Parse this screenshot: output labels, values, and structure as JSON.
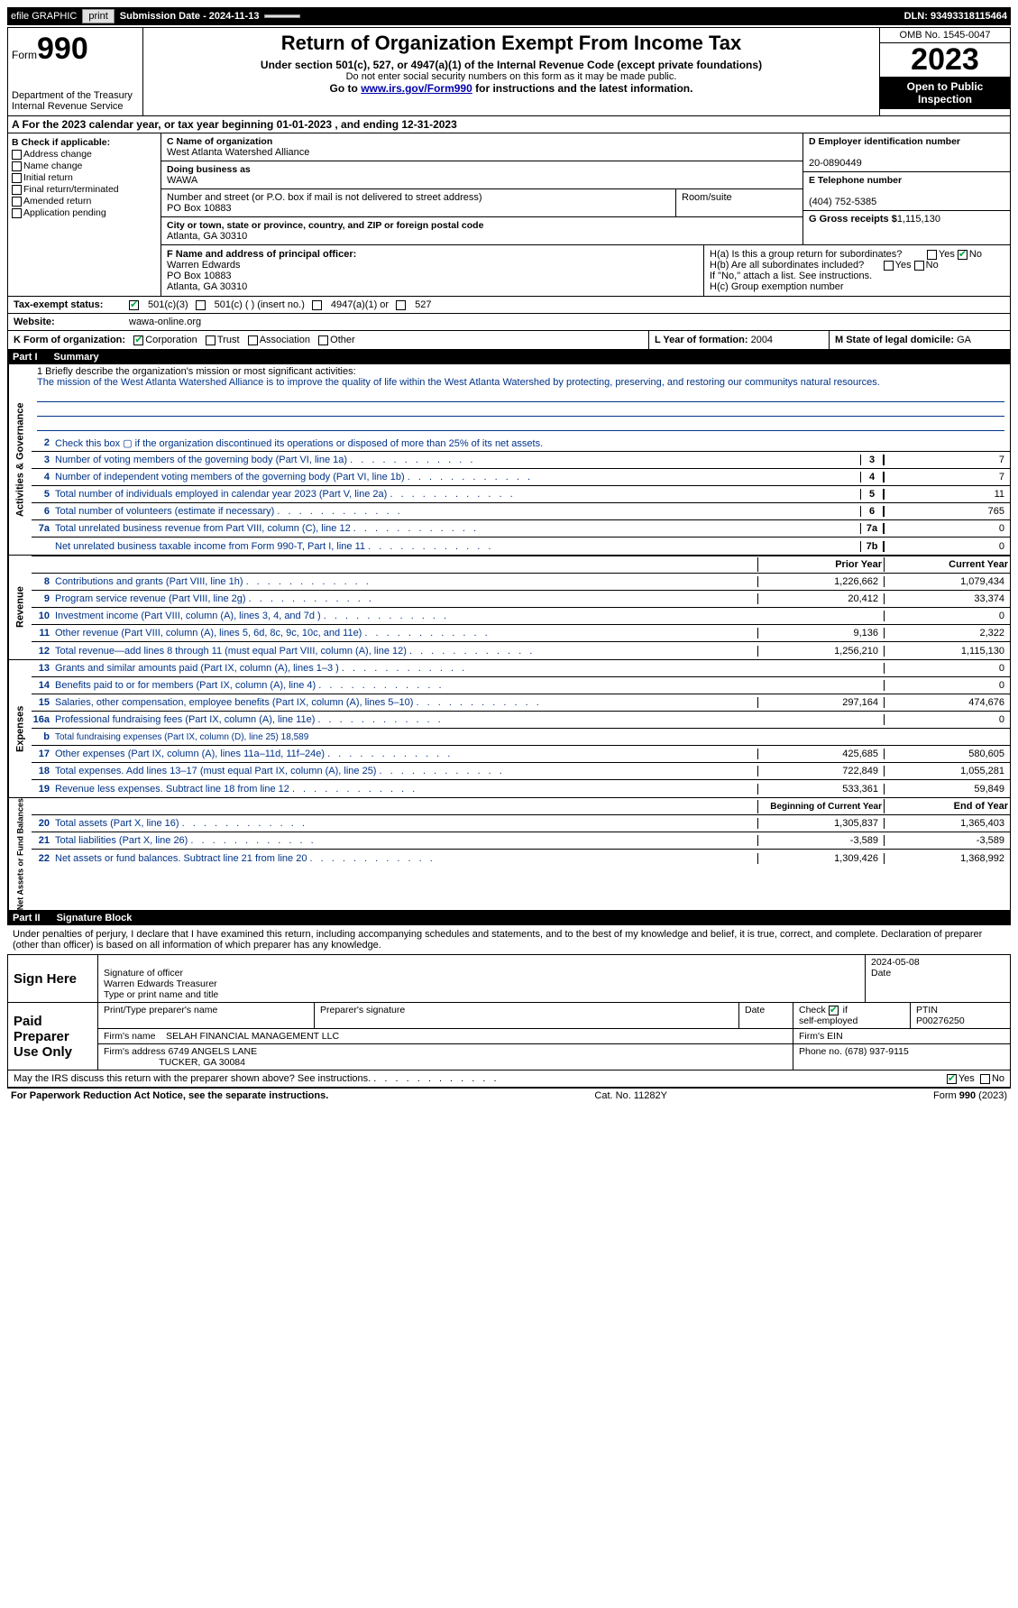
{
  "topbar": {
    "efile": "efile GRAPHIC",
    "print": "print",
    "submission": "Submission Date - 2024-11-13",
    "dln": "DLN: 93493318115464"
  },
  "header": {
    "form_label": "Form",
    "form_no": "990",
    "dept": "Department of the Treasury",
    "irs": "Internal Revenue Service",
    "title": "Return of Organization Exempt From Income Tax",
    "subtitle": "Under section 501(c), 527, or 4947(a)(1) of the Internal Revenue Code (except private foundations)",
    "ssn_note": "Do not enter social security numbers on this form as it may be made public.",
    "goto_pre": "Go to ",
    "goto_link": "www.irs.gov/Form990",
    "goto_post": " for instructions and the latest information.",
    "omb": "OMB No. 1545-0047",
    "year": "2023",
    "open": "Open to Public Inspection"
  },
  "section_a": "A  For the 2023 calendar year, or tax year beginning 01-01-2023   , and ending 12-31-2023",
  "col_b": {
    "hdr": "B Check if applicable:",
    "opts": [
      "Address change",
      "Name change",
      "Initial return",
      "Final return/terminated",
      "Amended return",
      "Application pending"
    ]
  },
  "col_c": {
    "name_lbl": "C Name of organization",
    "name": "West Atlanta Watershed Alliance",
    "dba_lbl": "Doing business as",
    "dba": "WAWA",
    "addr_lbl": "Number and street (or P.O. box if mail is not delivered to street address)",
    "addr": "PO Box 10883",
    "room_lbl": "Room/suite",
    "city_lbl": "City or town, state or province, country, and ZIP or foreign postal code",
    "city": "Atlanta, GA  30310"
  },
  "col_d": {
    "ein_lbl": "D Employer identification number",
    "ein": "20-0890449",
    "tel_lbl": "E Telephone number",
    "tel": "(404) 752-5385",
    "gross_lbl": "G Gross receipts $",
    "gross": "1,115,130"
  },
  "row_f": {
    "lbl": "F Name and address of principal officer:",
    "name": "Warren Edwards",
    "addr1": "PO Box 10883",
    "addr2": "Atlanta, GA  30310"
  },
  "row_h": {
    "ha": "H(a)  Is this a group return for subordinates?",
    "hb": "H(b)  Are all subordinates included?",
    "hb_note": "If \"No,\" attach a list. See instructions.",
    "hc": "H(c)  Group exemption number",
    "yes": "Yes",
    "no": "No"
  },
  "row_i": {
    "lbl": "Tax-exempt status:",
    "o1": "501(c)(3)",
    "o2": "501(c) (  ) (insert no.)",
    "o3": "4947(a)(1) or",
    "o4": "527"
  },
  "row_j": {
    "lbl": "Website:",
    "val": "wawa-online.org"
  },
  "row_k": {
    "lbl": "K Form of organization:",
    "o1": "Corporation",
    "o2": "Trust",
    "o3": "Association",
    "o4": "Other",
    "l_lbl": "L Year of formation:",
    "l_val": "2004",
    "m_lbl": "M State of legal domicile:",
    "m_val": "GA"
  },
  "part1": {
    "num": "Part I",
    "title": "Summary"
  },
  "mission": {
    "q": "1  Briefly describe the organization's mission or most significant activities:",
    "text": "The mission of the West Atlanta Watershed Alliance is to improve the quality of life within the West Atlanta Watershed by protecting, preserving, and restoring our communitys natural resources."
  },
  "side_labels": {
    "ag": "Activities & Governance",
    "rev": "Revenue",
    "exp": "Expenses",
    "na": "Net Assets or Fund Balances"
  },
  "lines_ag": [
    {
      "n": "2",
      "d": "Check this box  ▢  if the organization discontinued its operations or disposed of more than 25% of its net assets."
    },
    {
      "n": "3",
      "d": "Number of voting members of the governing body (Part VI, line 1a)",
      "nc": "3",
      "v": "7"
    },
    {
      "n": "4",
      "d": "Number of independent voting members of the governing body (Part VI, line 1b)",
      "nc": "4",
      "v": "7"
    },
    {
      "n": "5",
      "d": "Total number of individuals employed in calendar year 2023 (Part V, line 2a)",
      "nc": "5",
      "v": "11"
    },
    {
      "n": "6",
      "d": "Total number of volunteers (estimate if necessary)",
      "nc": "6",
      "v": "765"
    },
    {
      "n": "7a",
      "d": "Total unrelated business revenue from Part VIII, column (C), line 12",
      "nc": "7a",
      "v": "0"
    },
    {
      "n": "",
      "d": "Net unrelated business taxable income from Form 990-T, Part I, line 11",
      "nc": "7b",
      "v": "0"
    }
  ],
  "rev_head": {
    "c1": "Prior Year",
    "c2": "Current Year"
  },
  "lines_rev": [
    {
      "n": "8",
      "d": "Contributions and grants (Part VIII, line 1h)",
      "v1": "1,226,662",
      "v2": "1,079,434"
    },
    {
      "n": "9",
      "d": "Program service revenue (Part VIII, line 2g)",
      "v1": "20,412",
      "v2": "33,374"
    },
    {
      "n": "10",
      "d": "Investment income (Part VIII, column (A), lines 3, 4, and 7d )",
      "v1": "",
      "v2": "0"
    },
    {
      "n": "11",
      "d": "Other revenue (Part VIII, column (A), lines 5, 6d, 8c, 9c, 10c, and 11e)",
      "v1": "9,136",
      "v2": "2,322"
    },
    {
      "n": "12",
      "d": "Total revenue—add lines 8 through 11 (must equal Part VIII, column (A), line 12)",
      "v1": "1,256,210",
      "v2": "1,115,130"
    }
  ],
  "lines_exp": [
    {
      "n": "13",
      "d": "Grants and similar amounts paid (Part IX, column (A), lines 1–3 )",
      "v1": "",
      "v2": "0"
    },
    {
      "n": "14",
      "d": "Benefits paid to or for members (Part IX, column (A), line 4)",
      "v1": "",
      "v2": "0"
    },
    {
      "n": "15",
      "d": "Salaries, other compensation, employee benefits (Part IX, column (A), lines 5–10)",
      "v1": "297,164",
      "v2": "474,676"
    },
    {
      "n": "16a",
      "d": "Professional fundraising fees (Part IX, column (A), line 11e)",
      "v1": "",
      "v2": "0"
    },
    {
      "n": "b",
      "d": "Total fundraising expenses (Part IX, column (D), line 25) 18,589",
      "grey": true
    },
    {
      "n": "17",
      "d": "Other expenses (Part IX, column (A), lines 11a–11d, 11f–24e)",
      "v1": "425,685",
      "v2": "580,605"
    },
    {
      "n": "18",
      "d": "Total expenses. Add lines 13–17 (must equal Part IX, column (A), line 25)",
      "v1": "722,849",
      "v2": "1,055,281"
    },
    {
      "n": "19",
      "d": "Revenue less expenses. Subtract line 18 from line 12",
      "v1": "533,361",
      "v2": "59,849"
    }
  ],
  "na_head": {
    "c1": "Beginning of Current Year",
    "c2": "End of Year"
  },
  "lines_na": [
    {
      "n": "20",
      "d": "Total assets (Part X, line 16)",
      "v1": "1,305,837",
      "v2": "1,365,403"
    },
    {
      "n": "21",
      "d": "Total liabilities (Part X, line 26)",
      "v1": "-3,589",
      "v2": "-3,589"
    },
    {
      "n": "22",
      "d": "Net assets or fund balances. Subtract line 21 from line 20",
      "v1": "1,309,426",
      "v2": "1,368,992"
    }
  ],
  "part2": {
    "num": "Part II",
    "title": "Signature Block"
  },
  "decl": "Under penalties of perjury, I declare that I have examined this return, including accompanying schedules and statements, and to the best of my knowledge and belief, it is true, correct, and complete. Declaration of preparer (other than officer) is based on all information of which preparer has any knowledge.",
  "sign": {
    "side1": "Sign Here",
    "sig_lbl": "Signature of officer",
    "officer": "Warren Edwards  Treasurer",
    "type_lbl": "Type or print name and title",
    "date_lbl": "Date",
    "date_val": "2024-05-08",
    "side2": "Paid Preparer Use Only",
    "prep_name_lbl": "Print/Type preparer's name",
    "prep_sig_lbl": "Preparer's signature",
    "check_lbl": "Check         if self-employed",
    "ptin_lbl": "PTIN",
    "ptin": "P00276250",
    "firm_name_lbl": "Firm's name",
    "firm_name": "SELAH FINANCIAL MANAGEMENT LLC",
    "firm_ein_lbl": "Firm's EIN",
    "firm_addr_lbl": "Firm's address",
    "firm_addr1": "6749 ANGELS LANE",
    "firm_addr2": "TUCKER, GA  30084",
    "phone_lbl": "Phone no.",
    "phone": "(678) 937-9115"
  },
  "discuss": "May the IRS discuss this return with the preparer shown above? See instructions.",
  "footer": {
    "left": "For Paperwork Reduction Act Notice, see the separate instructions.",
    "mid": "Cat. No. 11282Y",
    "right": "Form 990 (2023)"
  }
}
